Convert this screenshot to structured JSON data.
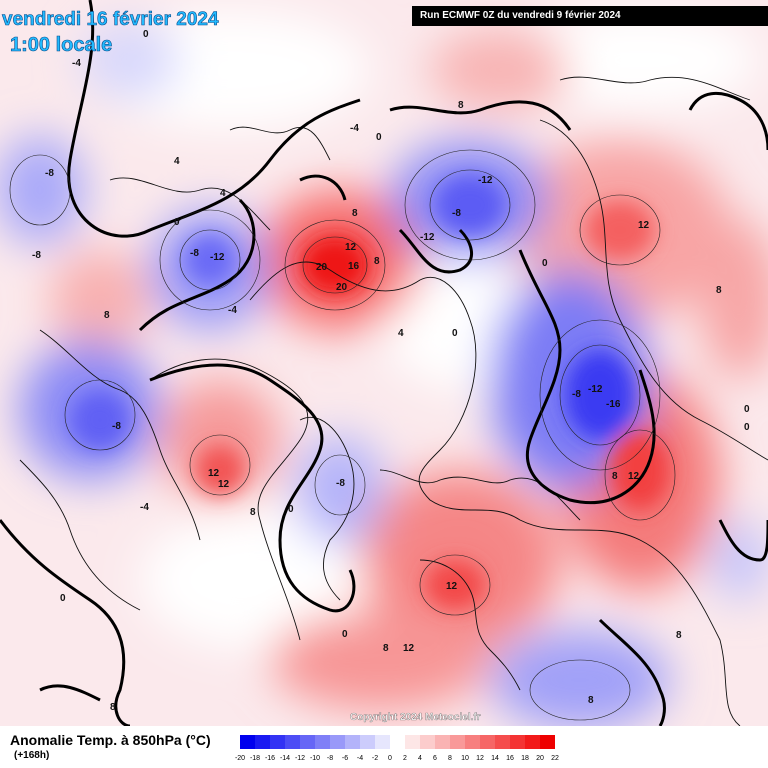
{
  "header": {
    "date": "vendredi 16 février 2024",
    "time": "1:00 locale",
    "run": "Run ECMWF 0Z du vendredi 9 février 2024"
  },
  "map": {
    "copyright": "Copyright 2024 Meteociel.fr",
    "labels": [
      {
        "text": "-8"
      },
      {
        "text": "-8"
      },
      {
        "text": "-4"
      },
      {
        "text": "-12"
      },
      {
        "text": "-8"
      },
      {
        "text": "-12"
      },
      {
        "text": "-8"
      },
      {
        "text": "-12"
      },
      {
        "text": "-12"
      },
      {
        "text": "-16"
      },
      {
        "text": "-8"
      },
      {
        "text": "-8"
      },
      {
        "text": "-8"
      },
      {
        "text": "-4"
      },
      {
        "text": "-4"
      },
      {
        "text": "-4"
      },
      {
        "text": "8"
      },
      {
        "text": "12"
      },
      {
        "text": "20"
      },
      {
        "text": "16"
      },
      {
        "text": "20"
      },
      {
        "text": "8"
      },
      {
        "text": "8"
      },
      {
        "text": "12"
      },
      {
        "text": "12"
      },
      {
        "text": "8"
      },
      {
        "text": "12"
      },
      {
        "text": "12"
      },
      {
        "text": "12"
      },
      {
        "text": "8"
      },
      {
        "text": "12"
      },
      {
        "text": "8"
      },
      {
        "text": "8"
      },
      {
        "text": "4"
      },
      {
        "text": "4"
      },
      {
        "text": "4"
      },
      {
        "text": "0"
      },
      {
        "text": "0"
      },
      {
        "text": "0"
      },
      {
        "text": "0"
      },
      {
        "text": "0"
      },
      {
        "text": "0"
      },
      {
        "text": "0"
      },
      {
        "text": "8"
      },
      {
        "text": "8"
      },
      {
        "text": "8"
      },
      {
        "text": "8"
      },
      {
        "text": "0"
      },
      {
        "text": "0"
      },
      {
        "text": "0"
      }
    ]
  },
  "footer": {
    "title": "Anomalie Temp. à 850hPa (°C)",
    "subtitle": "(+168h)"
  },
  "legend": {
    "ticks": [
      "-20",
      "-18",
      "-16",
      "-14",
      "-12",
      "-10",
      "-8",
      "-6",
      "-4",
      "-2",
      "0",
      "2",
      "4",
      "6",
      "8",
      "10",
      "12",
      "14",
      "16",
      "18",
      "20",
      "22"
    ],
    "colors": [
      "#0000ee",
      "#1a1af2",
      "#3333f4",
      "#4d4df5",
      "#6666f6",
      "#7f7ff7",
      "#9999f9",
      "#b3b3fa",
      "#ccccfc",
      "#e6e6fd",
      "#ffffff",
      "#fde6e6",
      "#fccccc",
      "#fab3b3",
      "#f99999",
      "#f77f7f",
      "#f66666",
      "#f54d4d",
      "#f43333",
      "#f21a1a",
      "#ee0000"
    ]
  }
}
